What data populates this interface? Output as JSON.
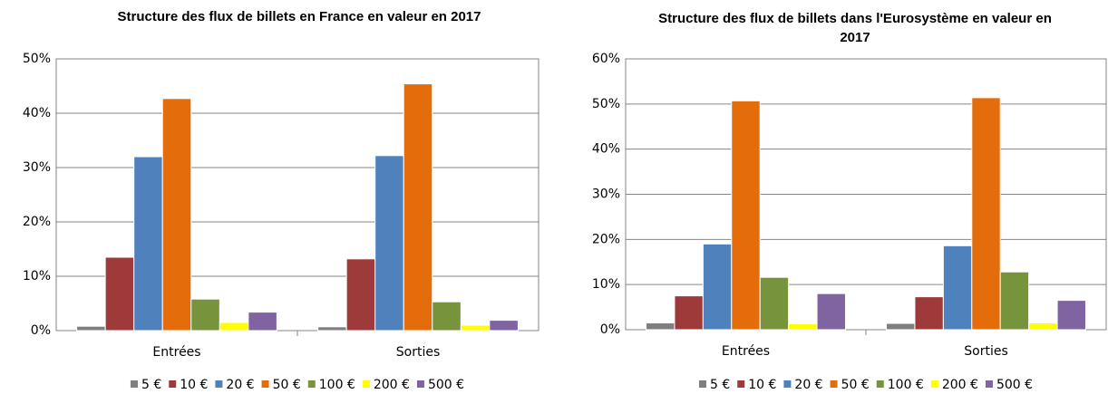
{
  "chart_data": [
    {
      "type": "bar",
      "title": "Structure des flux de billets en France en valeur en 2017",
      "categories": [
        "Entrées",
        "Sorties"
      ],
      "series": [
        {
          "name": "5 €",
          "color": "#7f7f7f",
          "values": [
            0.8,
            0.7
          ]
        },
        {
          "name": "10 €",
          "color": "#9e3a3a",
          "values": [
            13.5,
            13.2
          ]
        },
        {
          "name": "20 €",
          "color": "#4f81bd",
          "values": [
            32,
            32.2
          ]
        },
        {
          "name": "50 €",
          "color": "#e46c0a",
          "values": [
            42.7,
            45.4
          ]
        },
        {
          "name": "100 €",
          "color": "#77933c",
          "values": [
            5.8,
            5.3
          ]
        },
        {
          "name": "200 €",
          "color": "#ffff00",
          "values": [
            1.5,
            1.0
          ]
        },
        {
          "name": "500 €",
          "color": "#8064a2",
          "values": [
            3.4,
            1.9
          ]
        }
      ],
      "ylim": [
        0,
        50
      ],
      "yticks": [
        {
          "value": 0,
          "label": "0%"
        },
        {
          "value": 10,
          "label": "10%"
        },
        {
          "value": 20,
          "label": "20%"
        },
        {
          "value": 30,
          "label": "30%"
        },
        {
          "value": 40,
          "label": "40%"
        },
        {
          "value": 50,
          "label": "50%"
        }
      ],
      "grid": true,
      "legend": "bottom"
    },
    {
      "type": "bar",
      "title": "Structure des flux de billets dans l'Eurosystème en valeur en 2017",
      "categories": [
        "Entrées",
        "Sorties"
      ],
      "series": [
        {
          "name": "5 €",
          "color": "#7f7f7f",
          "values": [
            1.5,
            1.4
          ]
        },
        {
          "name": "10 €",
          "color": "#9e3a3a",
          "values": [
            7.5,
            7.3
          ]
        },
        {
          "name": "20 €",
          "color": "#4f81bd",
          "values": [
            19,
            18.6
          ]
        },
        {
          "name": "50 €",
          "color": "#e46c0a",
          "values": [
            50.7,
            51.4
          ]
        },
        {
          "name": "100 €",
          "color": "#77933c",
          "values": [
            11.6,
            12.8
          ]
        },
        {
          "name": "200 €",
          "color": "#ffff00",
          "values": [
            1.3,
            1.5
          ]
        },
        {
          "name": "500 €",
          "color": "#8064a2",
          "values": [
            8,
            6.5
          ]
        }
      ],
      "ylim": [
        0,
        60
      ],
      "yticks": [
        {
          "value": 0,
          "label": "0%"
        },
        {
          "value": 10,
          "label": "10%"
        },
        {
          "value": 20,
          "label": "20%"
        },
        {
          "value": 30,
          "label": "30%"
        },
        {
          "value": 40,
          "label": "40%"
        },
        {
          "value": 50,
          "label": "50%"
        },
        {
          "value": 60,
          "label": "60%"
        }
      ],
      "grid": true,
      "legend": "bottom"
    }
  ]
}
